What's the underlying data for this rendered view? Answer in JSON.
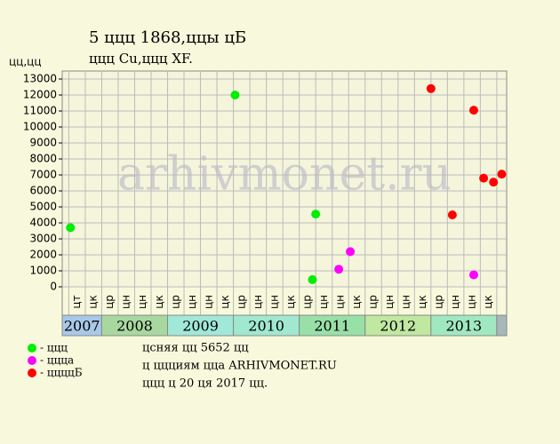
{
  "chart_data": {
    "type": "scatter",
    "title": "5 ццц 1868,ццы цБ",
    "subtitle": "ццц Cu,ццц XF.",
    "y_label": "цц,цц",
    "watermark": "arhivmonet.ru",
    "xlim": [
      -0.4,
      26.6
    ],
    "ylim": [
      0,
      13500
    ],
    "yticks": [
      0,
      1000,
      2000,
      3000,
      4000,
      5000,
      6000,
      7000,
      8000,
      9000,
      10000,
      11000,
      12000,
      13000
    ],
    "columns": [
      "цт",
      "цк",
      "цр",
      "цн",
      "цн",
      "цк",
      "цр",
      "цн",
      "цн",
      "цк",
      "цр",
      "цн",
      "цн",
      "цк",
      "цр",
      "цн",
      "цн",
      "цк",
      "цр",
      "цн",
      "цн",
      "цк",
      "цр",
      "цн",
      "цн",
      "цк"
    ],
    "years": [
      "2007",
      "2008",
      "2009",
      "2010",
      "2011",
      "2012",
      "2013"
    ],
    "series": [
      {
        "name": "- ццц",
        "color": "#00ee00",
        "x": [
          0.1,
          10.1,
          14.8,
          15.0
        ],
        "values": [
          3700,
          12000,
          450,
          4550
        ]
      },
      {
        "name": "- ццца",
        "color": "#ff00ff",
        "x": [
          16.4,
          17.1,
          24.6
        ],
        "values": [
          1100,
          2200,
          750
        ]
      },
      {
        "name": "- ццццБ",
        "color": "#ff0000",
        "x": [
          22.0,
          23.3,
          24.6,
          25.2,
          25.8,
          26.3
        ],
        "values": [
          12400,
          4500,
          11050,
          6800,
          6550,
          7050
        ]
      }
    ],
    "notes": [
      "цсняя цц 5652 цц",
      "ц ццциям цца ARHIVMONET.RU",
      "ццц ц 20 ця 2017 цц."
    ]
  }
}
